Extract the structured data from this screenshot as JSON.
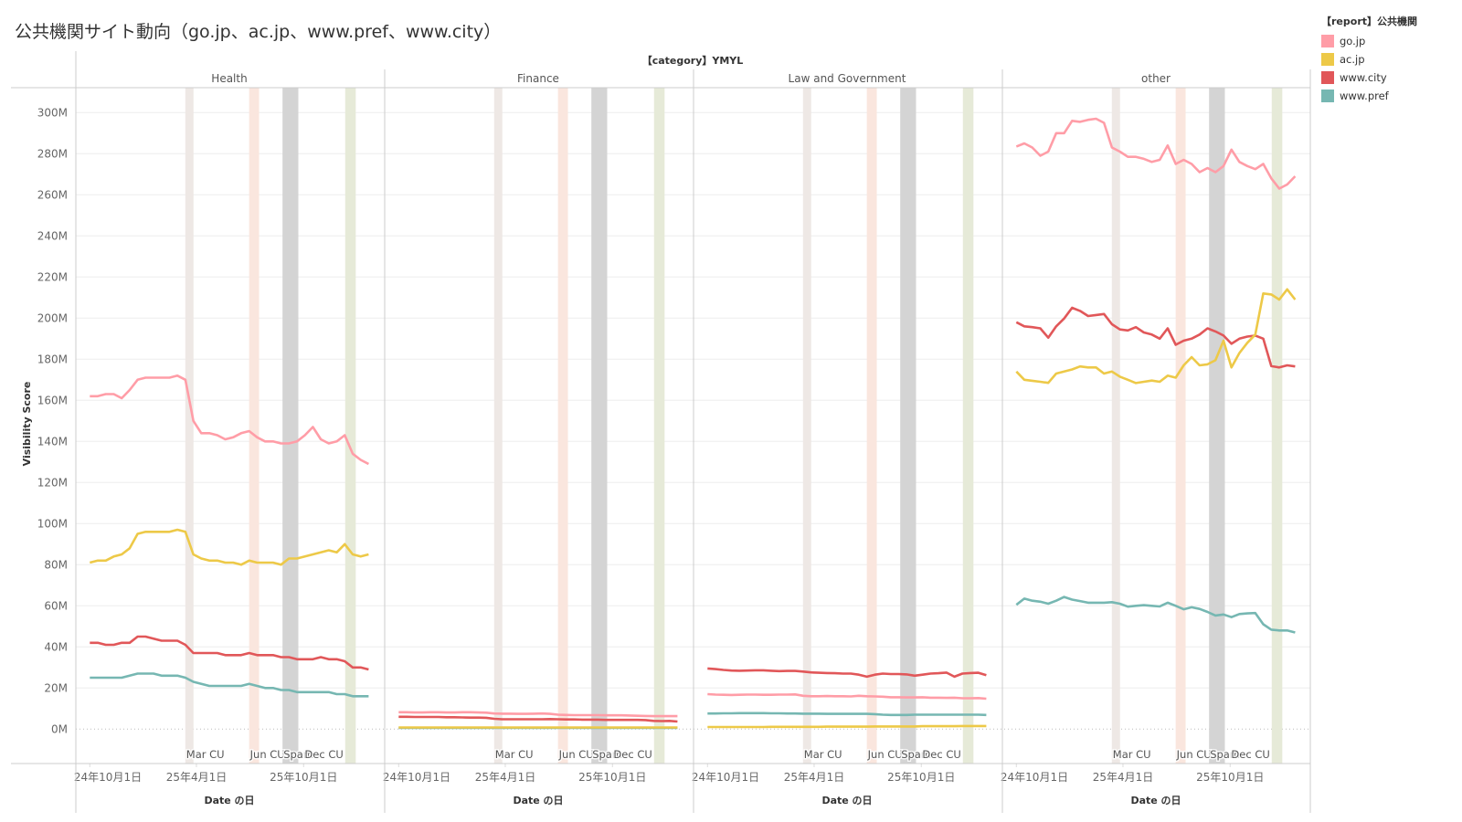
{
  "title": "公共機関サイト動向（go.jp、ac.jp、www.pref、www.city）",
  "legend": {
    "title": "【report】公共機関",
    "items": [
      {
        "label": "go.jp",
        "color": "#ff9da7"
      },
      {
        "label": "ac.jp",
        "color": "#edc948"
      },
      {
        "label": "www.city",
        "color": "#e15759"
      },
      {
        "label": "www.pref",
        "color": "#76b7b2"
      }
    ]
  },
  "chart_data": {
    "type": "line",
    "column_header": "【category】YMYL",
    "ylabel": "Visibility Score",
    "xlabel": "Date の日",
    "ylim": [
      -15,
      328
    ],
    "yticks": [
      0,
      20,
      40,
      60,
      80,
      100,
      120,
      140,
      160,
      180,
      200,
      220,
      240,
      260,
      280,
      300
    ],
    "ytick_suffix": "M",
    "x_start": "2024-10-01",
    "x_end": "2026-01-20",
    "xticks": [
      {
        "date": "2024-10-01",
        "label": "24年10月1日"
      },
      {
        "date": "2025-04-01",
        "label": "25年4月1日"
      },
      {
        "date": "2025-10-01",
        "label": "25年10月1日"
      }
    ],
    "annotations": [
      {
        "label": "Mar CU",
        "start": "2025-03-13",
        "end": "2025-03-27",
        "color": "#eee8e5"
      },
      {
        "label": "Jun CU",
        "start": "2025-06-30",
        "end": "2025-07-17",
        "color": "#fae6de"
      },
      {
        "label": "Spam",
        "start": "2025-08-26",
        "end": "2025-09-22",
        "color": "#d4d4d4"
      },
      {
        "label": "Dec CU",
        "start": "2025-12-11",
        "end": "2025-12-29",
        "color": "#e6ead8"
      }
    ],
    "series_order": [
      "www.pref",
      "www.city",
      "ac.jp",
      "go.jp"
    ],
    "panels": [
      {
        "name": "Health",
        "series": {
          "go.jp": [
            162,
            162,
            163,
            163,
            161,
            165,
            170,
            171,
            171,
            171,
            171,
            172,
            170,
            150,
            144,
            144,
            143,
            141,
            142,
            144,
            145,
            142,
            140,
            140,
            139,
            139,
            140,
            143,
            147,
            141,
            139,
            140,
            143,
            134,
            131,
            129
          ],
          "ac.jp": [
            81,
            82,
            82,
            84,
            85,
            88,
            95,
            96,
            96,
            96,
            96,
            97,
            96,
            85,
            83,
            82,
            82,
            81,
            81,
            80,
            82,
            81,
            81,
            81,
            80,
            83,
            83,
            84,
            85,
            86,
            87,
            86,
            90,
            85,
            84,
            85
          ],
          "www.city": [
            42,
            42,
            41,
            41,
            42,
            42,
            45,
            45,
            44,
            43,
            43,
            43,
            41,
            37,
            37,
            37,
            37,
            36,
            36,
            36,
            37,
            36,
            36,
            36,
            35,
            35,
            34,
            34,
            34,
            35,
            34,
            34,
            33,
            30,
            30,
            29
          ],
          "www.pref": [
            25,
            25,
            25,
            25,
            25,
            26,
            27,
            27,
            27,
            26,
            26,
            26,
            25,
            23,
            22,
            21,
            21,
            21,
            21,
            21,
            22,
            21,
            20,
            20,
            19,
            19,
            18,
            18,
            18,
            18,
            18,
            17,
            17,
            16,
            16,
            16
          ]
        }
      },
      {
        "name": "Finance",
        "series": {
          "go.jp": [
            8.2,
            8.2,
            8.1,
            8.1,
            8.2,
            8.2,
            8.1,
            8.1,
            8.2,
            8.2,
            8.1,
            8.0,
            7.6,
            7.5,
            7.5,
            7.4,
            7.4,
            7.5,
            7.6,
            7.4,
            7.0,
            6.9,
            6.8,
            6.8,
            6.8,
            6.8,
            6.7,
            6.7,
            6.7,
            6.6,
            6.5,
            6.4,
            6.3,
            6.3,
            6.3,
            6.3
          ],
          "ac.jp": [
            0.8,
            0.8,
            0.8,
            0.8,
            0.8,
            0.8,
            0.8,
            0.8,
            0.8,
            0.8,
            0.8,
            0.8,
            0.8,
            0.8,
            0.8,
            0.8,
            0.8,
            0.8,
            0.8,
            0.8,
            0.8,
            0.8,
            0.8,
            0.8,
            0.8,
            0.8,
            0.8,
            0.8,
            0.8,
            0.8,
            0.8,
            0.8,
            0.8,
            0.8,
            0.8,
            0.8
          ],
          "www.city": [
            6.0,
            6.0,
            5.9,
            5.9,
            5.9,
            5.9,
            5.8,
            5.8,
            5.7,
            5.6,
            5.6,
            5.5,
            5.0,
            4.8,
            4.8,
            4.8,
            4.8,
            4.8,
            4.8,
            4.9,
            4.8,
            4.7,
            4.7,
            4.6,
            4.6,
            4.6,
            4.5,
            4.5,
            4.5,
            4.5,
            4.5,
            4.4,
            4.0,
            3.9,
            4.0,
            3.7
          ],
          "www.pref": [
            0.6,
            0.6,
            0.6,
            0.6,
            0.6,
            0.6,
            0.6,
            0.6,
            0.6,
            0.6,
            0.6,
            0.6,
            0.6,
            0.6,
            0.6,
            0.6,
            0.6,
            0.6,
            0.6,
            0.6,
            0.6,
            0.6,
            0.6,
            0.6,
            0.6,
            0.6,
            0.6,
            0.6,
            0.6,
            0.6,
            0.6,
            0.6,
            0.6,
            0.6,
            0.6,
            0.6
          ]
        }
      },
      {
        "name": "Law and Government",
        "series": {
          "go.jp": [
            17.0,
            16.8,
            16.7,
            16.6,
            16.7,
            16.8,
            16.8,
            16.7,
            16.7,
            16.8,
            16.8,
            16.9,
            16.2,
            16.0,
            16.0,
            16.1,
            16.0,
            16.0,
            15.9,
            16.2,
            16.0,
            15.9,
            15.8,
            15.5,
            15.5,
            15.4,
            15.4,
            15.5,
            15.3,
            15.3,
            15.2,
            15.3,
            15.0,
            15.0,
            15.1,
            14.8
          ],
          "ac.jp": [
            1.0,
            1.0,
            1.0,
            1.0,
            1.0,
            1.0,
            1.0,
            1.0,
            1.1,
            1.1,
            1.1,
            1.1,
            1.1,
            1.1,
            1.1,
            1.2,
            1.2,
            1.2,
            1.2,
            1.2,
            1.2,
            1.3,
            1.3,
            1.3,
            1.3,
            1.3,
            1.3,
            1.4,
            1.4,
            1.4,
            1.4,
            1.4,
            1.5,
            1.5,
            1.5,
            1.5
          ],
          "www.city": [
            29.5,
            29.2,
            28.8,
            28.5,
            28.4,
            28.5,
            28.6,
            28.6,
            28.4,
            28.2,
            28.3,
            28.3,
            28.0,
            27.6,
            27.4,
            27.3,
            27.2,
            27.0,
            27.0,
            26.5,
            25.5,
            26.5,
            27.0,
            26.8,
            26.8,
            26.6,
            26.0,
            26.5,
            27.0,
            27.2,
            27.5,
            25.5,
            27.0,
            27.3,
            27.4,
            26.2
          ],
          "www.pref": [
            7.6,
            7.6,
            7.7,
            7.7,
            7.8,
            7.8,
            7.8,
            7.8,
            7.7,
            7.7,
            7.6,
            7.6,
            7.5,
            7.5,
            7.5,
            7.4,
            7.4,
            7.4,
            7.4,
            7.4,
            7.4,
            7.3,
            7.0,
            6.9,
            6.9,
            6.9,
            7.0,
            7.0,
            7.0,
            7.0,
            7.0,
            7.0,
            7.0,
            7.0,
            7.0,
            6.9
          ]
        }
      },
      {
        "name": "other",
        "series": {
          "go.jp": [
            283.5,
            285,
            283,
            279,
            281,
            290,
            290,
            296,
            295.5,
            296.5,
            297,
            295,
            283,
            281,
            278.5,
            278.5,
            277.5,
            276,
            277,
            284,
            275,
            277,
            275,
            271,
            273,
            271,
            274,
            282,
            276,
            274,
            272.5,
            275,
            268,
            263,
            265,
            269
          ],
          "ac.jp": [
            174,
            170,
            169.5,
            169,
            168.5,
            173,
            174,
            175,
            176.5,
            176,
            176,
            173,
            174,
            171.5,
            170,
            168.4,
            169,
            169.6,
            169,
            172,
            171,
            177,
            181,
            177,
            177.5,
            179.5,
            189,
            176,
            183,
            188,
            192,
            212,
            211.5,
            209,
            214,
            209
          ],
          "www.city": [
            198,
            196,
            195.6,
            195,
            190.5,
            196,
            199.8,
            205,
            203.5,
            201,
            201.5,
            202,
            197,
            194.5,
            194,
            195.6,
            193,
            192,
            190,
            195,
            187,
            189,
            190,
            192,
            195,
            193.5,
            191.5,
            187.5,
            190,
            191,
            191.5,
            190,
            176.6,
            176,
            177,
            176.5
          ],
          "www.pref": [
            60.5,
            63.5,
            62.5,
            62,
            61,
            62.5,
            64.3,
            63,
            62.3,
            61.5,
            61.5,
            61.5,
            61.8,
            61,
            59.6,
            60,
            60.3,
            60,
            59.7,
            61.5,
            60,
            58.3,
            59.3,
            58.5,
            57,
            55.3,
            55.8,
            54.5,
            56,
            56.3,
            56.5,
            51,
            48.4,
            48,
            48,
            47
          ]
        }
      }
    ]
  }
}
